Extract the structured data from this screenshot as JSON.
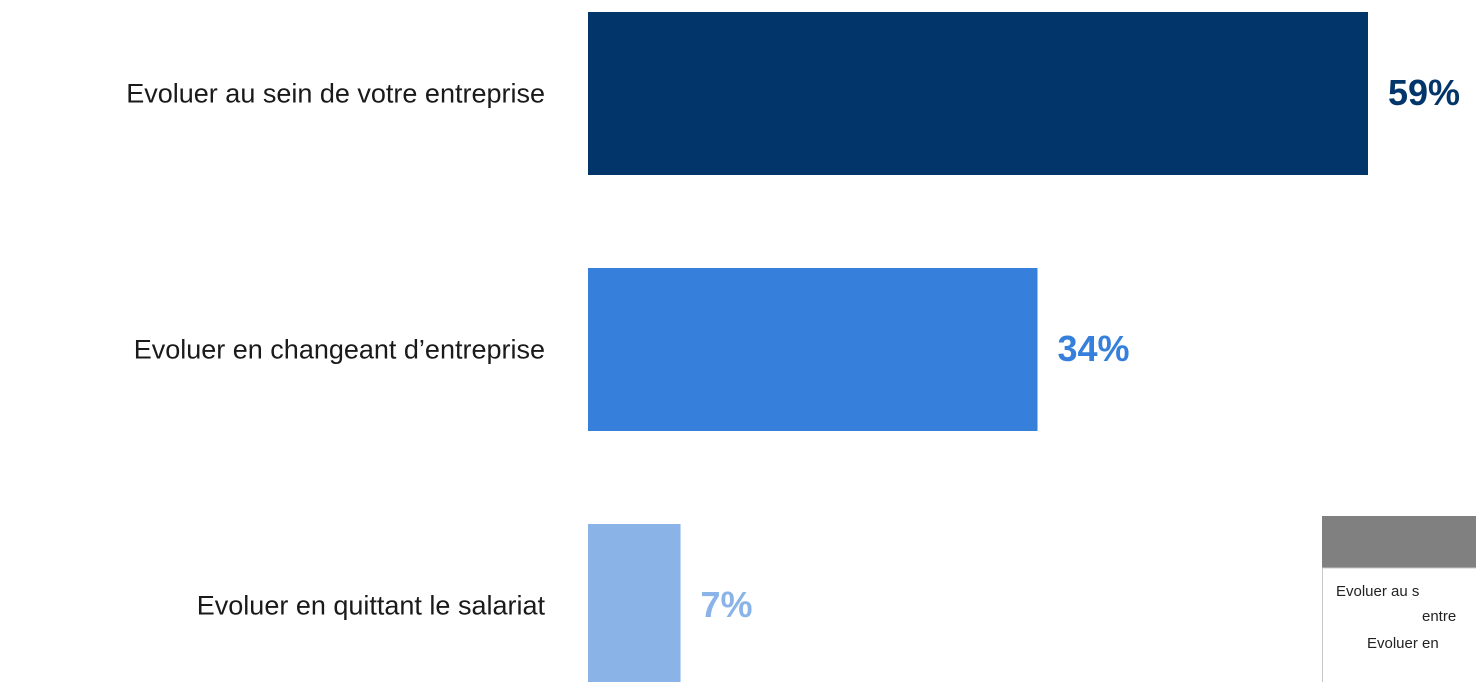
{
  "chart_data": {
    "type": "barh",
    "categories": [
      "Evoluer au sein de votre entreprise",
      "Evoluer en changeant d’entreprise",
      "Evoluer en quittant le salariat"
    ],
    "values": [
      59,
      34,
      7
    ],
    "value_labels": [
      "59%",
      "34%",
      "7%"
    ],
    "colors": [
      "#02366a",
      "#3680dc",
      "#8ab4e8"
    ],
    "xlim": [
      0,
      100
    ]
  },
  "table": {
    "rows": [
      "Evoluer au s",
      "entre",
      "Evoluer en"
    ]
  }
}
